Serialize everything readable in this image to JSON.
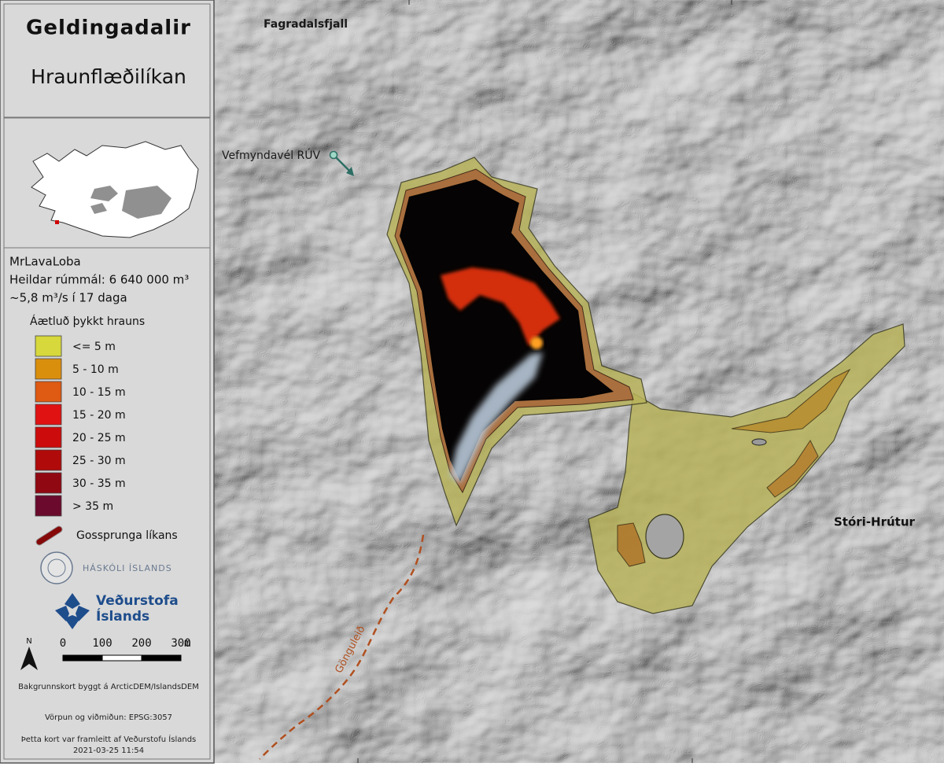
{
  "panel": {
    "title": "Geldingadalir",
    "subtitle": "Hraunflæðilíkan",
    "model": "MrLavaLoba",
    "volume": "Heildar rúmmál: 6 640 000 m³",
    "rate": "~5,8 m³/s í 17 daga",
    "legend_title": "Áætluð þykkt hrauns",
    "legend": [
      {
        "label": "<= 5 m",
        "color": "#d6d83c"
      },
      {
        "label": "5 - 10 m",
        "color": "#d98e0c"
      },
      {
        "label": "10 - 15 m",
        "color": "#df5a12"
      },
      {
        "label": "15 - 20 m",
        "color": "#e01212"
      },
      {
        "label": "20 - 25 m",
        "color": "#cc0c0c"
      },
      {
        "label": "25 - 30 m",
        "color": "#b00a0a"
      },
      {
        "label": "30 - 35 m",
        "color": "#900812"
      },
      {
        "label": "> 35 m",
        "color": "#6b0a2c"
      }
    ],
    "fissure": {
      "label": "Gossprunga líkans",
      "color": "#c00000"
    },
    "university": "HÁSKÓLI ÍSLANDS",
    "met_office": [
      "Veðurstofa",
      "Íslands"
    ],
    "north": "N",
    "scale": {
      "ticks": [
        0,
        100,
        200,
        300
      ],
      "unit": "m"
    },
    "notes": [
      "Bakgrunnskort byggt á ArcticDEM/IslandsDEM",
      "Vörpun og viðmiðun: EPSG:3057",
      "Þetta kort var framleitt af Veðurstofu Íslands",
      "2021-03-25 11:54"
    ]
  },
  "map_labels": {
    "mountain": "Fagradalsfjall",
    "webcam": "Vefmyndavél RÚV",
    "hill": "Stóri-Hrútur",
    "trail": "Gönguleið"
  }
}
